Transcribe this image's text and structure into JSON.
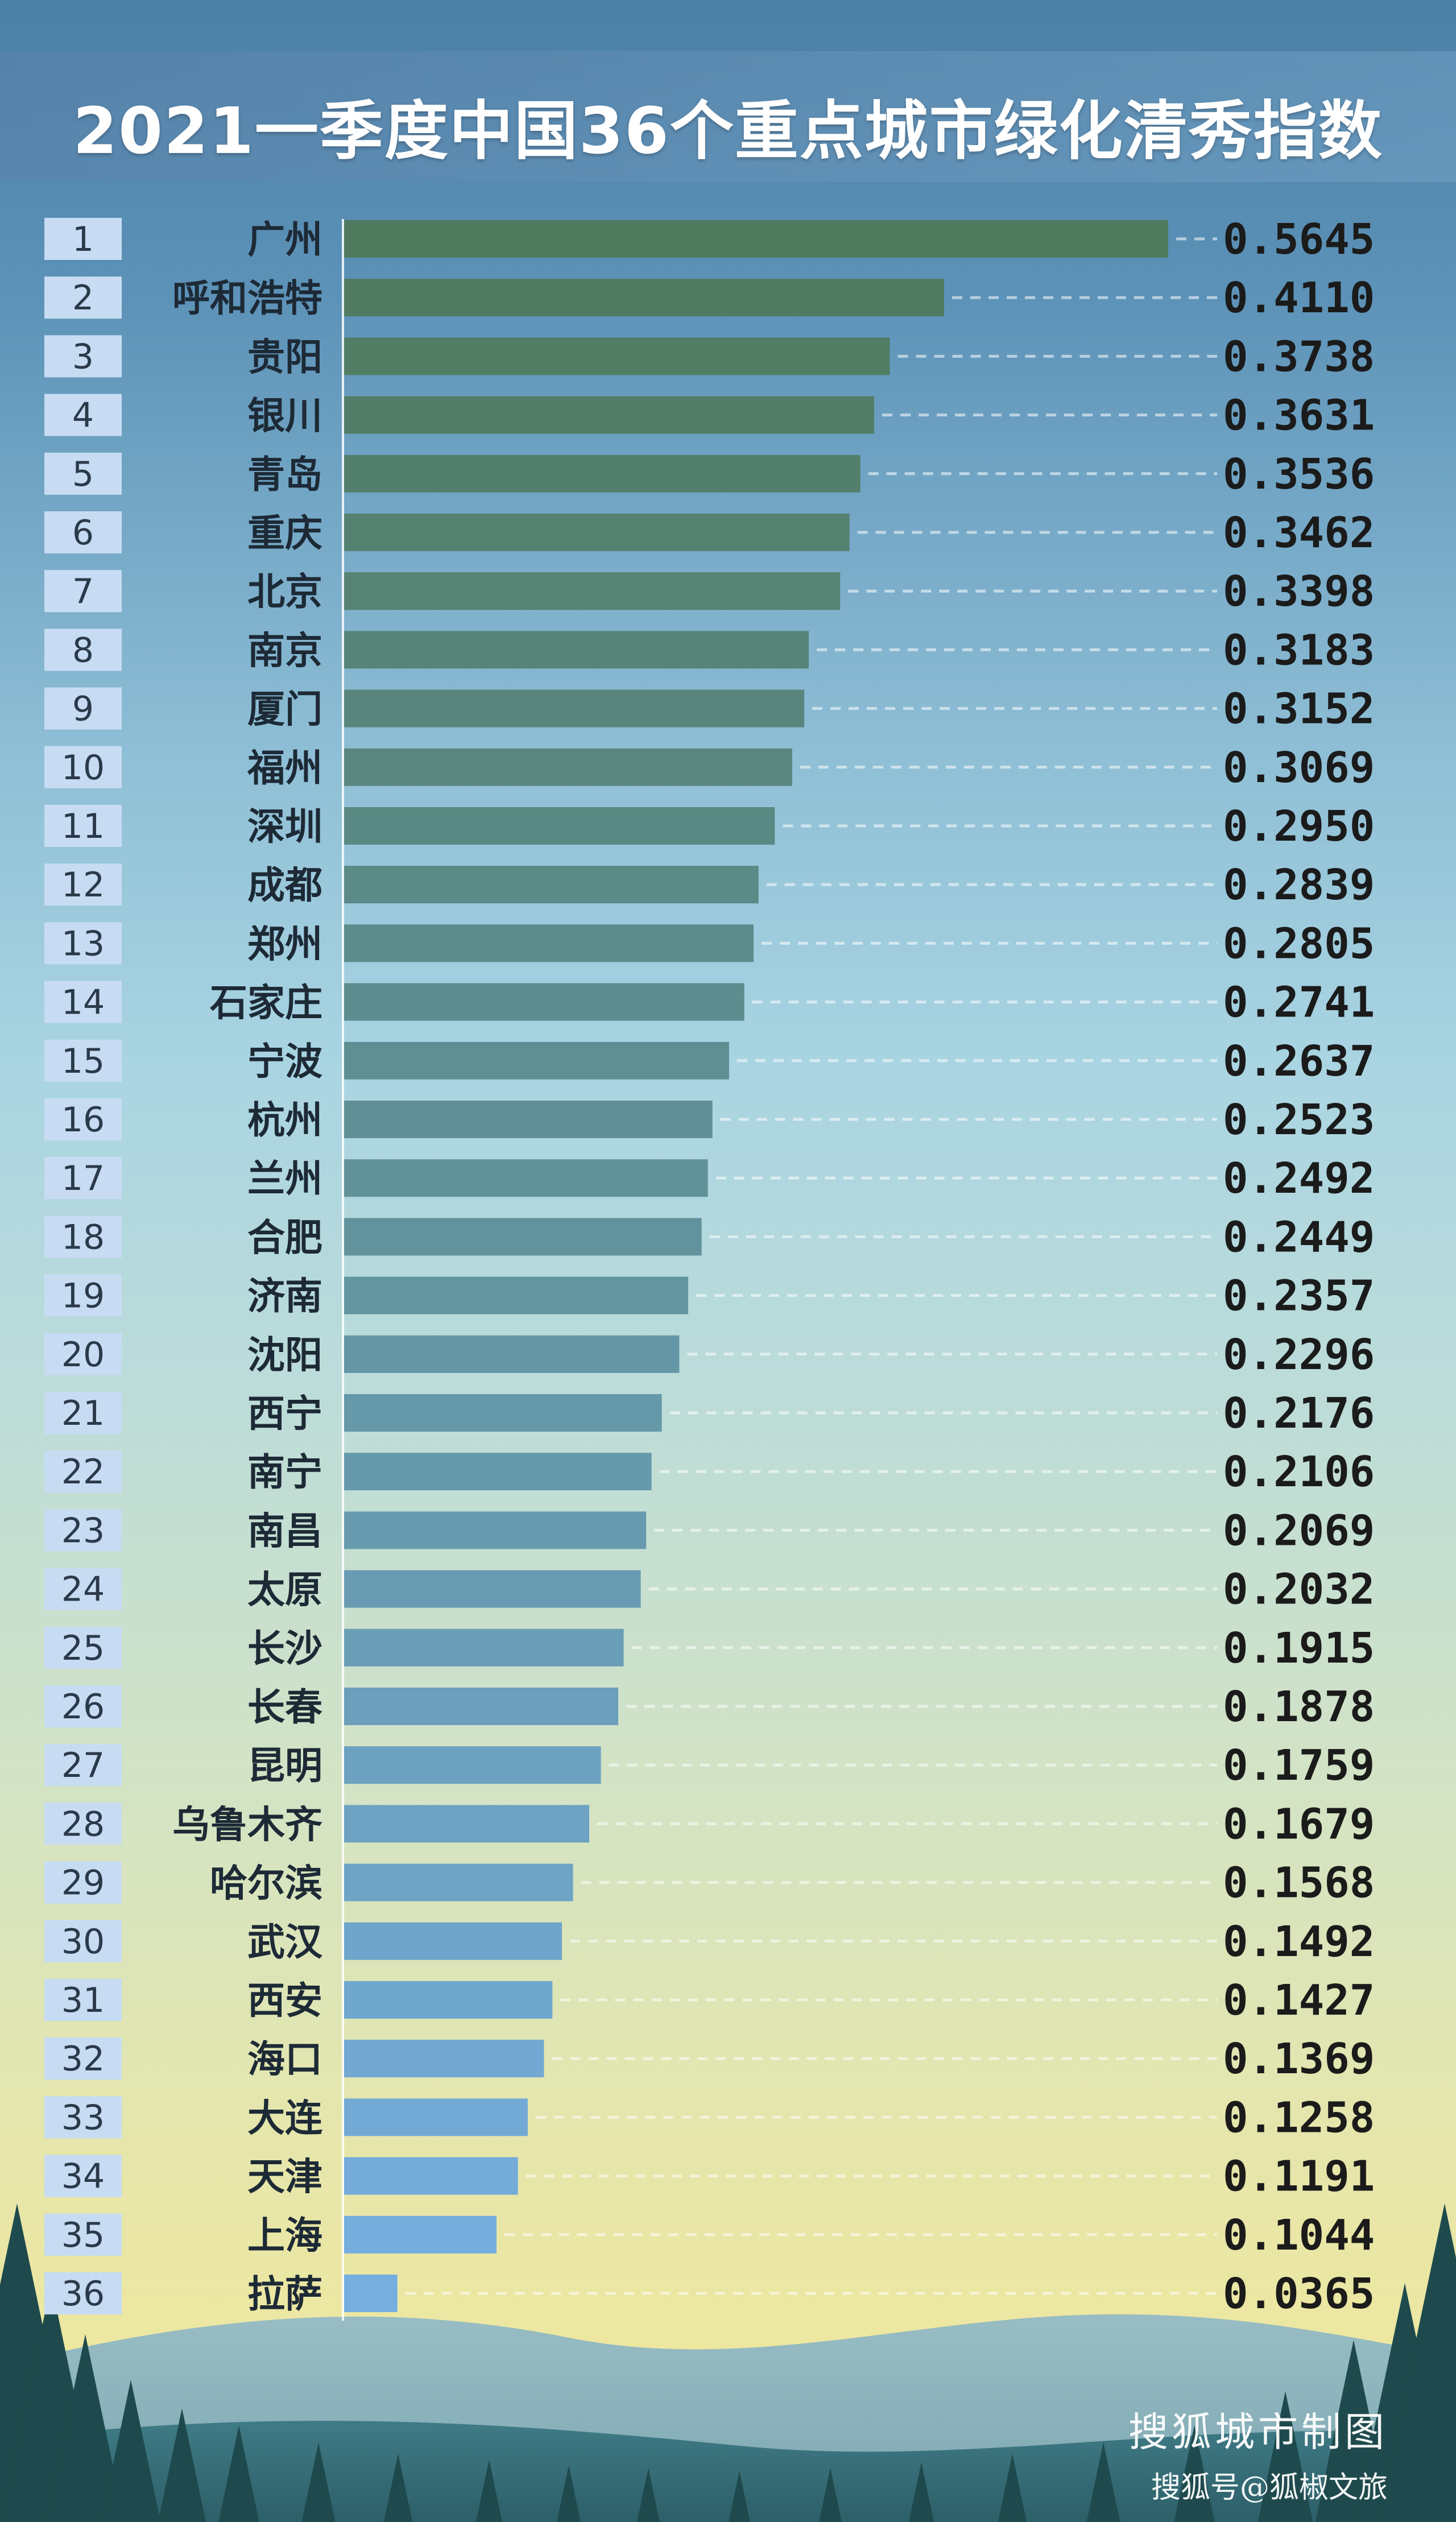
{
  "chart_data": {
    "type": "bar",
    "title": "2021一季度中国36个重点城市绿化清秀指数",
    "ranks": [
      "1",
      "2",
      "3",
      "4",
      "5",
      "6",
      "7",
      "8",
      "9",
      "10",
      "11",
      "12",
      "13",
      "14",
      "15",
      "16",
      "17",
      "18",
      "19",
      "20",
      "21",
      "22",
      "23",
      "24",
      "25",
      "26",
      "27",
      "28",
      "29",
      "30",
      "31",
      "32",
      "33",
      "34",
      "35",
      "36"
    ],
    "categories": [
      "广州",
      "呼和浩特",
      "贵阳",
      "银川",
      "青岛",
      "重庆",
      "北京",
      "南京",
      "厦门",
      "福州",
      "深圳",
      "成都",
      "郑州",
      "石家庄",
      "宁波",
      "杭州",
      "兰州",
      "合肥",
      "济南",
      "沈阳",
      "西宁",
      "南宁",
      "南昌",
      "太原",
      "长沙",
      "长春",
      "昆明",
      "乌鲁木齐",
      "哈尔滨",
      "武汉",
      "西安",
      "海口",
      "大连",
      "天津",
      "上海",
      "拉萨"
    ],
    "values": [
      0.5645,
      0.411,
      0.3738,
      0.3631,
      0.3536,
      0.3462,
      0.3398,
      0.3183,
      0.3152,
      0.3069,
      0.295,
      0.2839,
      0.2805,
      0.2741,
      0.2637,
      0.2523,
      0.2492,
      0.2449,
      0.2357,
      0.2296,
      0.2176,
      0.2106,
      0.2069,
      0.2032,
      0.1915,
      0.1878,
      0.1759,
      0.1679,
      0.1568,
      0.1492,
      0.1427,
      0.1369,
      0.1258,
      0.1191,
      0.1044,
      0.0365
    ],
    "value_labels": [
      "0.5645",
      "0.4110",
      "0.3738",
      "0.3631",
      "0.3536",
      "0.3462",
      "0.3398",
      "0.3183",
      "0.3152",
      "0.3069",
      "0.2950",
      "0.2839",
      "0.2805",
      "0.2741",
      "0.2637",
      "0.2523",
      "0.2492",
      "0.2449",
      "0.2357",
      "0.2296",
      "0.2176",
      "0.2106",
      "0.2069",
      "0.2032",
      "0.1915",
      "0.1878",
      "0.1759",
      "0.1679",
      "0.1568",
      "0.1492",
      "0.1427",
      "0.1369",
      "0.1258",
      "0.1191",
      "0.1044",
      "0.0365"
    ],
    "orientation": "horizontal",
    "xlim": [
      0,
      0.5645
    ],
    "grid": false,
    "colors": {
      "bar_top": "#4f7a5e",
      "bar_bottom": "#76aee0"
    }
  },
  "watermark": {
    "line1": "搜狐城市制图",
    "line2": "搜狐号@狐椒文旅"
  }
}
